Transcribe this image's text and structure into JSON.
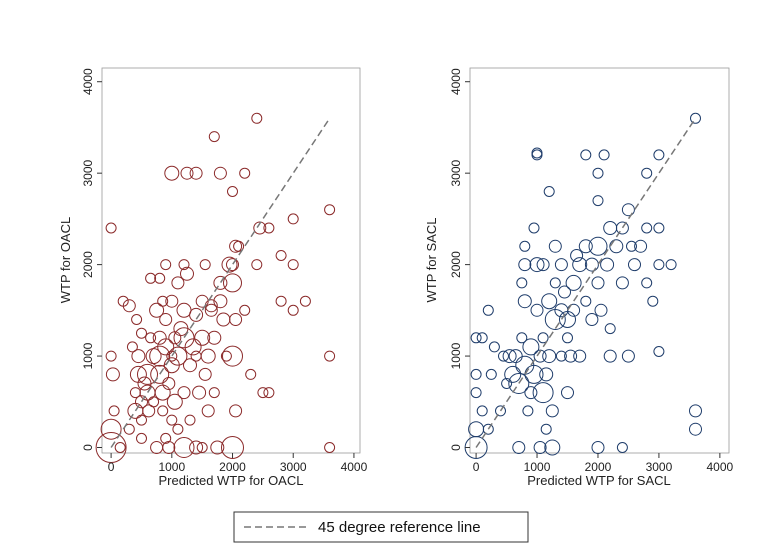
{
  "colors": {
    "oacl": "#8b2a2a",
    "sacl": "#1f3d6b",
    "refline": "#777777"
  },
  "legend": {
    "label": "45 degree reference line",
    "placement": "bottom-center"
  },
  "chart_data": [
    {
      "type": "scatter",
      "xlabel": "Predicted WTP for OACL",
      "ylabel": "WTP for OACL",
      "xlim": [
        -150,
        4100
      ],
      "ylim": [
        -60,
        4150
      ],
      "xticks": [
        0,
        1000,
        2000,
        3000,
        4000
      ],
      "yticks": [
        0,
        1000,
        2000,
        3000,
        4000
      ],
      "grid": false,
      "reference_line": [
        [
          0,
          0
        ],
        [
          3600,
          3600
        ]
      ],
      "points": [
        [
          0,
          0,
          3
        ],
        [
          0,
          200,
          2
        ],
        [
          50,
          400,
          1
        ],
        [
          30,
          800,
          1.3
        ],
        [
          0,
          1000,
          1
        ],
        [
          0,
          2400,
          1
        ],
        [
          150,
          0,
          1
        ],
        [
          200,
          1600,
          1
        ],
        [
          300,
          200,
          1
        ],
        [
          300,
          1550,
          1.2
        ],
        [
          350,
          1100,
          1
        ],
        [
          400,
          400,
          1.5
        ],
        [
          400,
          600,
          1
        ],
        [
          420,
          1400,
          1
        ],
        [
          450,
          800,
          1.6
        ],
        [
          450,
          1000,
          1.3
        ],
        [
          500,
          500,
          1.2
        ],
        [
          500,
          300,
          1
        ],
        [
          500,
          100,
          1
        ],
        [
          500,
          1250,
          1
        ],
        [
          550,
          700,
          1.3
        ],
        [
          600,
          800,
          2
        ],
        [
          600,
          600,
          1.5
        ],
        [
          620,
          400,
          1.2
        ],
        [
          650,
          1200,
          1
        ],
        [
          650,
          1850,
          1
        ],
        [
          700,
          1000,
          1.5
        ],
        [
          700,
          500,
          1
        ],
        [
          750,
          1500,
          1.4
        ],
        [
          750,
          0,
          1.2
        ],
        [
          800,
          800,
          1.8
        ],
        [
          800,
          1000,
          2
        ],
        [
          800,
          1200,
          1.3
        ],
        [
          800,
          1850,
          1
        ],
        [
          850,
          600,
          1.5
        ],
        [
          850,
          400,
          1
        ],
        [
          850,
          1600,
          1
        ],
        [
          900,
          100,
          1
        ],
        [
          900,
          1100,
          1.6
        ],
        [
          900,
          1400,
          1.2
        ],
        [
          900,
          2000,
          1
        ],
        [
          950,
          0,
          1.2
        ],
        [
          950,
          700,
          1.2
        ],
        [
          1000,
          300,
          1
        ],
        [
          1000,
          900,
          1.5
        ],
        [
          1000,
          1000,
          1
        ],
        [
          1000,
          1600,
          1.2
        ],
        [
          1000,
          3000,
          1.4
        ],
        [
          1050,
          500,
          1.5
        ],
        [
          1050,
          1200,
          1.2
        ],
        [
          1100,
          1000,
          1.8
        ],
        [
          1100,
          200,
          1
        ],
        [
          1100,
          1800,
          1.2
        ],
        [
          1150,
          1300,
          1.4
        ],
        [
          1200,
          0,
          2
        ],
        [
          1200,
          600,
          1.2
        ],
        [
          1200,
          1200,
          2
        ],
        [
          1200,
          1500,
          1.4
        ],
        [
          1200,
          2000,
          1
        ],
        [
          1250,
          3000,
          1.2
        ],
        [
          1250,
          1900,
          1.3
        ],
        [
          1300,
          900,
          1.3
        ],
        [
          1300,
          300,
          1
        ],
        [
          1350,
          1100,
          1.6
        ],
        [
          1400,
          0,
          1.3
        ],
        [
          1400,
          1000,
          1
        ],
        [
          1400,
          1450,
          1.3
        ],
        [
          1400,
          3000,
          1.2
        ],
        [
          1450,
          600,
          1.3
        ],
        [
          1500,
          1200,
          1.5
        ],
        [
          1500,
          1600,
          1.2
        ],
        [
          1500,
          0,
          1
        ],
        [
          1550,
          2000,
          1
        ],
        [
          1550,
          800,
          1.2
        ],
        [
          1600,
          1000,
          1.4
        ],
        [
          1600,
          400,
          1.2
        ],
        [
          1650,
          1500,
          1.2
        ],
        [
          1650,
          1550,
          1.2
        ],
        [
          1700,
          3400,
          1
        ],
        [
          1700,
          1200,
          1.3
        ],
        [
          1700,
          600,
          1
        ],
        [
          1750,
          0,
          1.3
        ],
        [
          1800,
          1800,
          1.3
        ],
        [
          1800,
          1600,
          1.3
        ],
        [
          1800,
          3000,
          1.2
        ],
        [
          1850,
          1400,
          1.3
        ],
        [
          1900,
          1000,
          1
        ],
        [
          1950,
          2000,
          1.5
        ],
        [
          2000,
          1800,
          1.8
        ],
        [
          2000,
          1000,
          2
        ],
        [
          2000,
          2000,
          1.2
        ],
        [
          2000,
          0,
          2.2
        ],
        [
          2000,
          2800,
          1
        ],
        [
          2050,
          2200,
          1.2
        ],
        [
          2050,
          400,
          1.2
        ],
        [
          2050,
          1400,
          1.2
        ],
        [
          2100,
          2200,
          1
        ],
        [
          2200,
          3000,
          1
        ],
        [
          2200,
          1500,
          1
        ],
        [
          2300,
          800,
          1
        ],
        [
          2400,
          3600,
          1
        ],
        [
          2400,
          2000,
          1
        ],
        [
          2450,
          2400,
          1.2
        ],
        [
          2500,
          600,
          1
        ],
        [
          2600,
          2400,
          1
        ],
        [
          2600,
          600,
          1
        ],
        [
          2800,
          2100,
          1
        ],
        [
          2800,
          1600,
          1
        ],
        [
          3000,
          2000,
          1
        ],
        [
          3000,
          1500,
          1
        ],
        [
          3000,
          2500,
          1
        ],
        [
          3200,
          1600,
          1
        ],
        [
          3600,
          2600,
          1
        ],
        [
          3600,
          1000,
          1
        ],
        [
          3600,
          0,
          1
        ]
      ]
    },
    {
      "type": "scatter",
      "xlabel": "Predicted WTP for SACL",
      "ylabel": "WTP for SACL",
      "xlim": [
        -100,
        4150
      ],
      "ylim": [
        -60,
        4150
      ],
      "xticks": [
        0,
        1000,
        2000,
        3000,
        4000
      ],
      "yticks": [
        0,
        1000,
        2000,
        3000,
        4000
      ],
      "grid": false,
      "reference_line": [
        [
          0,
          0
        ],
        [
          3600,
          3600
        ]
      ],
      "points": [
        [
          0,
          0,
          2.2
        ],
        [
          0,
          200,
          1.5
        ],
        [
          0,
          600,
          1
        ],
        [
          0,
          800,
          1
        ],
        [
          0,
          1200,
          1
        ],
        [
          100,
          1200,
          1
        ],
        [
          100,
          400,
          1
        ],
        [
          200,
          200,
          1
        ],
        [
          200,
          1500,
          1
        ],
        [
          250,
          800,
          1
        ],
        [
          300,
          1100,
          1
        ],
        [
          400,
          400,
          1
        ],
        [
          450,
          1000,
          1
        ],
        [
          500,
          700,
          1
        ],
        [
          550,
          1000,
          1.3
        ],
        [
          600,
          800,
          1.6
        ],
        [
          650,
          1000,
          1.3
        ],
        [
          700,
          700,
          2
        ],
        [
          700,
          0,
          1.2
        ],
        [
          750,
          1200,
          1
        ],
        [
          750,
          1800,
          1
        ],
        [
          800,
          900,
          1.8
        ],
        [
          800,
          1600,
          1.3
        ],
        [
          800,
          2000,
          1.2
        ],
        [
          800,
          2200,
          1
        ],
        [
          850,
          400,
          1
        ],
        [
          900,
          1100,
          1.6
        ],
        [
          900,
          600,
          1.2
        ],
        [
          950,
          800,
          1.8
        ],
        [
          950,
          2400,
          1
        ],
        [
          1000,
          3200,
          1
        ],
        [
          1000,
          3220,
          1
        ],
        [
          1000,
          2000,
          1.4
        ],
        [
          1000,
          1500,
          1.2
        ],
        [
          1050,
          1000,
          1.2
        ],
        [
          1050,
          0,
          1.2
        ],
        [
          1100,
          600,
          2
        ],
        [
          1100,
          1200,
          1
        ],
        [
          1100,
          2000,
          1.2
        ],
        [
          1150,
          200,
          1
        ],
        [
          1150,
          800,
          1.3
        ],
        [
          1200,
          1600,
          1.5
        ],
        [
          1200,
          2800,
          1
        ],
        [
          1200,
          1000,
          1.3
        ],
        [
          1250,
          0,
          1.5
        ],
        [
          1250,
          400,
          1.2
        ],
        [
          1300,
          1400,
          2
        ],
        [
          1300,
          2200,
          1.2
        ],
        [
          1300,
          1800,
          1
        ],
        [
          1400,
          1500,
          1.3
        ],
        [
          1400,
          2000,
          1.2
        ],
        [
          1400,
          1000,
          1
        ],
        [
          1450,
          1700,
          1.2
        ],
        [
          1500,
          1400,
          1.6
        ],
        [
          1500,
          600,
          1.2
        ],
        [
          1500,
          1200,
          1
        ],
        [
          1550,
          1000,
          1.2
        ],
        [
          1600,
          1800,
          1.5
        ],
        [
          1600,
          1500,
          1.2
        ],
        [
          1650,
          2100,
          1.2
        ],
        [
          1700,
          1000,
          1.2
        ],
        [
          1700,
          2000,
          1.4
        ],
        [
          1800,
          3200,
          1
        ],
        [
          1800,
          2200,
          1.3
        ],
        [
          1800,
          1600,
          1
        ],
        [
          1900,
          1400,
          1.2
        ],
        [
          1900,
          2000,
          1.3
        ],
        [
          2000,
          3000,
          1
        ],
        [
          2000,
          2200,
          1.8
        ],
        [
          2000,
          2700,
          1
        ],
        [
          2000,
          1800,
          1.2
        ],
        [
          2000,
          0,
          1.2
        ],
        [
          2050,
          1500,
          1.2
        ],
        [
          2100,
          3200,
          1
        ],
        [
          2150,
          2000,
          1.3
        ],
        [
          2200,
          1000,
          1.2
        ],
        [
          2200,
          2400,
          1.3
        ],
        [
          2200,
          1300,
          1
        ],
        [
          2300,
          2200,
          1.3
        ],
        [
          2400,
          2400,
          1.2
        ],
        [
          2400,
          1800,
          1.2
        ],
        [
          2400,
          0,
          1
        ],
        [
          2500,
          2600,
          1.2
        ],
        [
          2500,
          1000,
          1.2
        ],
        [
          2550,
          2200,
          1
        ],
        [
          2600,
          2000,
          1.2
        ],
        [
          2700,
          2200,
          1.2
        ],
        [
          2800,
          1800,
          1
        ],
        [
          2800,
          3000,
          1
        ],
        [
          2800,
          2400,
          1
        ],
        [
          2900,
          1600,
          1
        ],
        [
          3000,
          2400,
          1
        ],
        [
          3000,
          2000,
          1
        ],
        [
          3000,
          3200,
          1
        ],
        [
          3000,
          1050,
          1
        ],
        [
          3200,
          2000,
          1
        ],
        [
          3600,
          3600,
          1
        ],
        [
          3600,
          400,
          1.2
        ],
        [
          3600,
          200,
          1.2
        ]
      ]
    }
  ]
}
